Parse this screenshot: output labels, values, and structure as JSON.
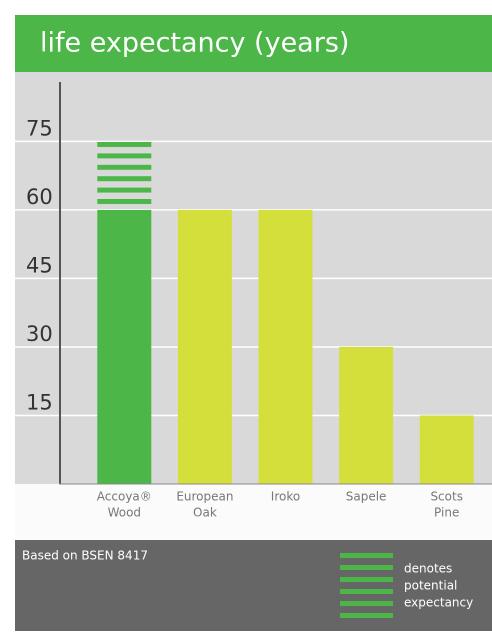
{
  "chart_data": {
    "type": "bar",
    "title": "life expectancy (years)",
    "categories": [
      [
        "Accoya®",
        "Wood"
      ],
      [
        "European",
        "Oak"
      ],
      [
        "Iroko"
      ],
      [
        "Sapele"
      ],
      [
        "Scots",
        "Pine"
      ]
    ],
    "values": [
      60,
      60,
      60,
      30,
      15
    ],
    "potential_values": [
      75,
      null,
      null,
      null,
      null
    ],
    "colors": [
      "#4cb748",
      "#d5df3c",
      "#d5df3c",
      "#d5df3c",
      "#d5df3c"
    ],
    "ylim": [
      0,
      88
    ],
    "yticks": [
      15,
      30,
      45,
      60,
      75
    ],
    "grid": true,
    "source": "Based on BSEN 8417",
    "legend_lines": [
      "denotes",
      "potential",
      "expectancy"
    ]
  }
}
